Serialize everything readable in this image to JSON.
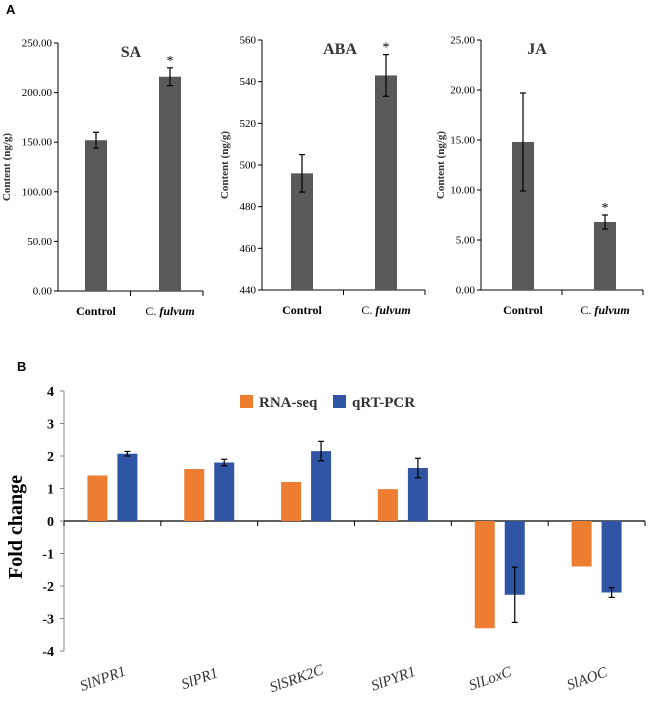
{
  "panels": {
    "a_label": "A",
    "b_label": "B"
  },
  "chart_data": [
    {
      "type": "bar",
      "title": "SA",
      "ylabel": "Content (ng/g)",
      "xlabel": "",
      "categories": [
        "Control",
        "C. fulvum"
      ],
      "values": [
        152,
        216
      ],
      "errors": [
        8,
        9
      ],
      "significance": [
        "",
        "*"
      ],
      "ylim": [
        0,
        250
      ],
      "yticks": [
        0,
        50,
        100,
        150,
        200,
        250
      ],
      "ytick_labels": [
        "0.00",
        "50.00",
        "100.00",
        "150.00",
        "200.00",
        "250.00"
      ],
      "bar_color": "#595959"
    },
    {
      "type": "bar",
      "title": "ABA",
      "ylabel": "Content (ng/g)",
      "xlabel": "",
      "categories": [
        "Control",
        "C. fulvum"
      ],
      "values": [
        496,
        543
      ],
      "errors": [
        9,
        10
      ],
      "significance": [
        "",
        "*"
      ],
      "ylim": [
        440,
        560
      ],
      "yticks": [
        440,
        460,
        480,
        500,
        520,
        540,
        560
      ],
      "ytick_labels": [
        "440",
        "460",
        "480",
        "500",
        "520",
        "540",
        "560"
      ],
      "bar_color": "#595959"
    },
    {
      "type": "bar",
      "title": "JA",
      "ylabel": "Content (ng/g)",
      "xlabel": "",
      "categories": [
        "Control",
        "C. fulvum"
      ],
      "values": [
        14.8,
        6.8
      ],
      "errors": [
        4.9,
        0.7
      ],
      "significance": [
        "",
        "*"
      ],
      "ylim": [
        0,
        25
      ],
      "yticks": [
        0,
        5,
        10,
        15,
        20,
        25
      ],
      "ytick_labels": [
        "0.00",
        "5.00",
        "10.00",
        "15.00",
        "20.00",
        "25.00"
      ],
      "bar_color": "#595959"
    },
    {
      "type": "bar",
      "title": "",
      "ylabel": "Fold change",
      "xlabel": "",
      "categories": [
        "SlNPR1",
        "SlPR1",
        "SlSRK2C",
        "SlPYR1",
        "SlLoxC",
        "SlAOC"
      ],
      "series": [
        {
          "name": "RNA-seq",
          "color": "#ED7D31",
          "values": [
            1.4,
            1.6,
            1.2,
            0.98,
            -3.3,
            -1.4
          ],
          "errors": [
            0,
            0,
            0,
            0,
            0,
            0
          ]
        },
        {
          "name": "qRT-PCR",
          "color": "#2F55A4",
          "values": [
            2.07,
            1.8,
            2.15,
            1.63,
            -2.27,
            -2.2
          ],
          "errors": [
            0.07,
            0.1,
            0.3,
            0.3,
            0.85,
            0.15
          ]
        }
      ],
      "ylim": [
        -4,
        4
      ],
      "yticks": [
        -4,
        -3,
        -2,
        -1,
        0,
        1,
        2,
        3,
        4
      ],
      "ytick_labels": [
        "-4",
        "-3",
        "-2",
        "-1",
        "0",
        "1",
        "2",
        "3",
        "4"
      ],
      "legend_position": "top"
    }
  ]
}
